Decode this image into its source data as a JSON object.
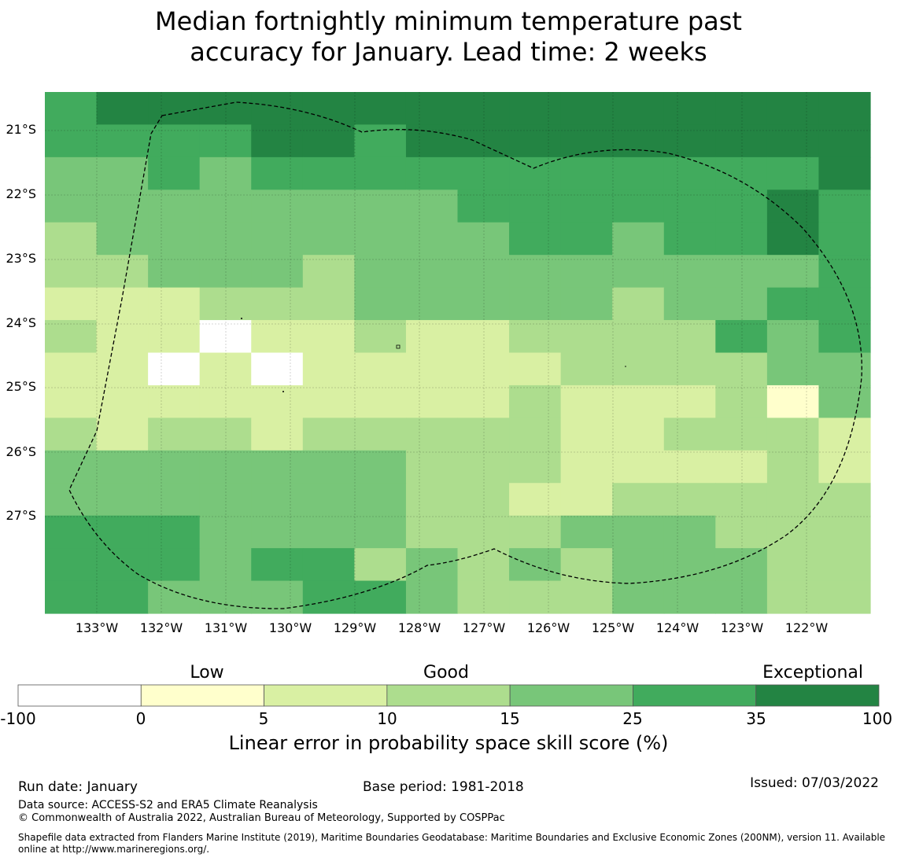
{
  "title": {
    "line1": "Median fortnightly minimum temperature past",
    "line2": "accuracy for January. Lead time: 2 weeks"
  },
  "map": {
    "lat_labels": [
      "21°S",
      "22°S",
      "23°S",
      "24°S",
      "25°S",
      "26°S",
      "27°S"
    ],
    "lon_labels": [
      "133°W",
      "132°W",
      "131°W",
      "130°W",
      "129°W",
      "128°W",
      "127°W",
      "126°W",
      "125°W",
      "124°W",
      "123°W",
      "122°W"
    ],
    "grid_levels": [
      [
        5,
        6,
        6,
        6,
        6,
        6,
        6,
        6,
        6,
        6,
        6,
        6,
        6,
        6,
        6,
        6
      ],
      [
        5,
        5,
        5,
        5,
        6,
        6,
        5,
        6,
        6,
        6,
        6,
        6,
        6,
        6,
        6,
        6
      ],
      [
        4,
        4,
        5,
        4,
        5,
        5,
        5,
        5,
        5,
        5,
        5,
        5,
        5,
        5,
        5,
        6
      ],
      [
        4,
        4,
        4,
        4,
        4,
        4,
        4,
        4,
        5,
        5,
        5,
        5,
        5,
        5,
        6,
        5
      ],
      [
        3,
        4,
        4,
        4,
        4,
        4,
        4,
        4,
        4,
        5,
        5,
        4,
        5,
        5,
        6,
        5
      ],
      [
        3,
        3,
        4,
        4,
        4,
        3,
        4,
        4,
        4,
        4,
        4,
        4,
        4,
        4,
        4,
        5
      ],
      [
        2,
        2,
        2,
        3,
        3,
        3,
        4,
        4,
        4,
        4,
        4,
        3,
        4,
        4,
        5,
        5
      ],
      [
        3,
        2,
        2,
        0,
        2,
        2,
        3,
        2,
        2,
        3,
        3,
        3,
        3,
        5,
        4,
        5
      ],
      [
        2,
        2,
        0,
        2,
        0,
        2,
        2,
        2,
        2,
        2,
        3,
        3,
        3,
        3,
        4,
        4
      ],
      [
        2,
        2,
        2,
        2,
        2,
        2,
        2,
        2,
        2,
        3,
        2,
        2,
        2,
        3,
        1,
        4
      ],
      [
        3,
        2,
        3,
        3,
        2,
        3,
        3,
        3,
        3,
        3,
        2,
        2,
        3,
        3,
        3,
        2
      ],
      [
        4,
        4,
        4,
        4,
        4,
        4,
        4,
        3,
        3,
        3,
        2,
        2,
        2,
        2,
        3,
        2
      ],
      [
        4,
        4,
        4,
        4,
        4,
        4,
        4,
        3,
        3,
        2,
        2,
        3,
        3,
        3,
        3,
        3
      ],
      [
        5,
        5,
        5,
        4,
        4,
        4,
        4,
        3,
        3,
        3,
        4,
        4,
        4,
        3,
        3,
        3
      ],
      [
        5,
        5,
        5,
        4,
        5,
        5,
        3,
        4,
        3,
        4,
        3,
        4,
        4,
        4,
        3,
        3
      ],
      [
        5,
        5,
        4,
        4,
        4,
        5,
        5,
        4,
        3,
        3,
        3,
        4,
        4,
        4,
        3,
        3
      ]
    ]
  },
  "colorbar": {
    "colors": [
      "#ffffff",
      "#ffffcc",
      "#d9f0a3",
      "#addd8e",
      "#78c679",
      "#41ab5d",
      "#238443"
    ],
    "ticks": [
      "-100",
      "0",
      "5",
      "10",
      "15",
      "25",
      "35",
      "100"
    ],
    "categories": [
      "Low",
      "Good",
      "Exceptional"
    ],
    "label": "Linear error in probability space skill score (%)"
  },
  "footer": {
    "run_date": "Run date: January",
    "base_period": "Base period: 1981-2018",
    "issued": "Issued: 07/03/2022",
    "data_source": "Data source: ACCESS-S2 and ERA5 Climate Reanalysis",
    "copyright": "© Commonwealth of Australia 2022, Australian Bureau of Meteorology, Supported by COSPPac",
    "shapefile": "Shapefile data extracted from Flanders Marine Institute (2019), Maritime Boundaries Geodatabase: Maritime Boundaries and Exclusive Economic Zones (200NM), version 11. Available online at http://www.marineregions.org/."
  }
}
